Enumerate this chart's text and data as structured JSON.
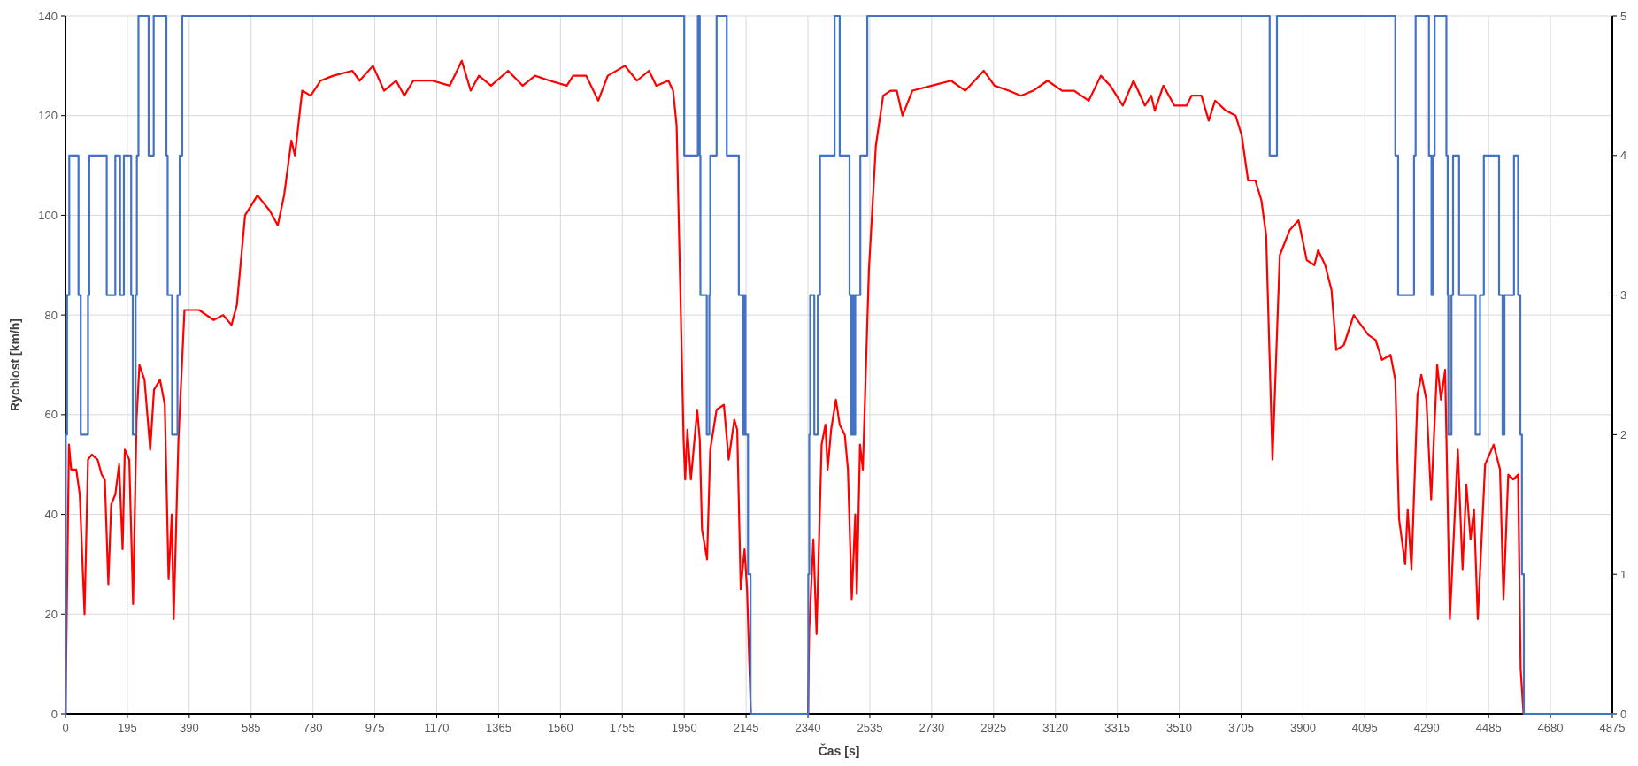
{
  "chart_data": {
    "type": "line",
    "xlabel": "Čas [s]",
    "ylabel": "Rychlost [km/h]",
    "xlim": [
      0,
      4875
    ],
    "xticks": [
      0,
      195,
      390,
      585,
      780,
      975,
      1170,
      1365,
      1560,
      1755,
      1950,
      2145,
      2340,
      2535,
      2730,
      2925,
      3120,
      3315,
      3510,
      3705,
      3900,
      4095,
      4290,
      4485,
      4680,
      4875
    ],
    "ylim": [
      0,
      140
    ],
    "yticks": [
      0,
      20,
      40,
      60,
      80,
      100,
      120,
      140
    ],
    "y2lim": [
      0,
      5
    ],
    "y2ticks": [
      0,
      1,
      2,
      3,
      4,
      5
    ],
    "grid": true,
    "marker": "none",
    "line_style": "solid",
    "series": [
      {
        "color": "#ff0000",
        "x": [
          0,
          11,
          18,
          34,
          45,
          60,
          71,
          83,
          101,
          114,
          124,
          135,
          144,
          157,
          169,
          180,
          187,
          201,
          213,
          224,
          233,
          249,
          267,
          279,
          298,
          313,
          325,
          335,
          341,
          356,
          367,
          375,
          421,
          467,
          497,
          523,
          540,
          566,
          605,
          643,
          669,
          689,
          712,
          723,
          746,
          773,
          804,
          844,
          904,
          927,
          969,
          1004,
          1042,
          1068,
          1096,
          1157,
          1211,
          1249,
          1277,
          1303,
          1341,
          1395,
          1441,
          1480,
          1526,
          1580,
          1600,
          1641,
          1679,
          1709,
          1763,
          1801,
          1839,
          1862,
          1900,
          1915,
          1926,
          1938,
          1948,
          1953,
          1960,
          1971,
          1991,
          1999,
          2006,
          2022,
          2032,
          2052,
          2075,
          2090,
          2108,
          2117,
          2128,
          2140,
          2148,
          2160,
          2340,
          2344,
          2357,
          2367,
          2383,
          2395,
          2402,
          2413,
          2428,
          2440,
          2456,
          2466,
          2478,
          2489,
          2494,
          2504,
          2513,
          2532,
          2554,
          2577,
          2600,
          2620,
          2638,
          2669,
          2730,
          2791,
          2836,
          2894,
          2928,
          2973,
          3011,
          3050,
          3095,
          3141,
          3179,
          3225,
          3263,
          3293,
          3332,
          3366,
          3402,
          3422,
          3433,
          3460,
          3495,
          3533,
          3549,
          3580,
          3603,
          3623,
          3657,
          3688,
          3707,
          3727,
          3750,
          3769,
          3784,
          3804,
          3827,
          3858,
          3886,
          3912,
          3936,
          3948,
          3970,
          3990,
          4005,
          4029,
          4060,
          4083,
          4106,
          4129,
          4149,
          4176,
          4191,
          4203,
          4222,
          4230,
          4242,
          4261,
          4273,
          4289,
          4304,
          4323,
          4335,
          4348,
          4363,
          4388,
          4403,
          4415,
          4428,
          4439,
          4451,
          4474,
          4501,
          4521,
          4532,
          4547,
          4563,
          4578,
          4586,
          4595
        ],
        "values": [
          0,
          54,
          49,
          49,
          44,
          20,
          51,
          52,
          51,
          48,
          47,
          26,
          42,
          44,
          50,
          33,
          53,
          51,
          22,
          59,
          70,
          67,
          53,
          65,
          67,
          62,
          27,
          40,
          19,
          55,
          70,
          81,
          81,
          79,
          80,
          78,
          82,
          100,
          104,
          101,
          98,
          104,
          115,
          112,
          125,
          124,
          127,
          128,
          129,
          127,
          130,
          125,
          127,
          124,
          127,
          127,
          126,
          131,
          125,
          128,
          126,
          129,
          126,
          128,
          127,
          126,
          128,
          128,
          123,
          128,
          130,
          127,
          129,
          126,
          127,
          125,
          118,
          84,
          55,
          47,
          57,
          47,
          61,
          55,
          37,
          31,
          53,
          61,
          62,
          51,
          59,
          57,
          25,
          33,
          25,
          0,
          0,
          17,
          35,
          16,
          54,
          58,
          49,
          57,
          63,
          58,
          56,
          49,
          23,
          40,
          24,
          54,
          49,
          89,
          114,
          124,
          125,
          125,
          120,
          125,
          126,
          127,
          125,
          129,
          126,
          125,
          124,
          125,
          127,
          125,
          125,
          123,
          128,
          126,
          122,
          127,
          122,
          124,
          121,
          126,
          122,
          122,
          124,
          124,
          119,
          123,
          121,
          120,
          116,
          107,
          107,
          103,
          96,
          51,
          92,
          97,
          99,
          91,
          90,
          93,
          90,
          85,
          73,
          74,
          80,
          78,
          76,
          75,
          71,
          72,
          67,
          39,
          30,
          41,
          29,
          64,
          68,
          63,
          43,
          70,
          63,
          69,
          19,
          53,
          29,
          46,
          35,
          41,
          19,
          50,
          54,
          49,
          23,
          48,
          47,
          48,
          9,
          0
        ]
      },
      {
        "type": "step",
        "axis": "y2",
        "color": "#4472c4",
        "x": [
          0,
          1,
          5,
          12,
          41,
          48,
          71,
          75,
          130,
          157,
          172,
          184,
          207,
          212,
          221,
          225,
          230,
          262,
          278,
          318,
          322,
          336,
          353,
          360,
          368,
          1950,
          1993,
          1999,
          2001,
          2021,
          2029,
          2032,
          2052,
          2084,
          2122,
          2136,
          2140,
          2143,
          2151,
          2159,
          2341,
          2344,
          2347,
          2360,
          2371,
          2378,
          2424,
          2440,
          2471,
          2476,
          2480,
          2484,
          2489,
          2505,
          2527,
          3795,
          3818,
          4191,
          4200,
          4250,
          4255,
          4297,
          4305,
          4309,
          4315,
          4352,
          4356,
          4358,
          4368,
          4373,
          4392,
          4444,
          4458,
          4470,
          4518,
          4529,
          4535,
          4565,
          4578,
          4585,
          4590,
          4596,
          4875
        ],
        "values": [
          0,
          2,
          3,
          4,
          3,
          2,
          3,
          4,
          3,
          4,
          3,
          4,
          3,
          2,
          3,
          4,
          5,
          4,
          5,
          4,
          3,
          2,
          3,
          4,
          5,
          4,
          5,
          4,
          3,
          2,
          3,
          4,
          5,
          4,
          3,
          2,
          3,
          2,
          1,
          0,
          1,
          2,
          3,
          2,
          3,
          4,
          5,
          4,
          3,
          2,
          3,
          2,
          3,
          4,
          5,
          4,
          5,
          4,
          3,
          4,
          5,
          4,
          3,
          4,
          5,
          4,
          3,
          2,
          3,
          4,
          3,
          2,
          3,
          4,
          3,
          2,
          3,
          4,
          3,
          2,
          1,
          0,
          0
        ]
      }
    ]
  }
}
